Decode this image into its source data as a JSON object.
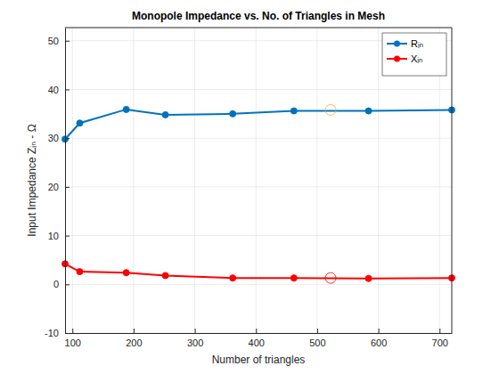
{
  "chart_data": {
    "type": "line",
    "title": "Monopole Impedance vs. No. of Triangles in Mesh",
    "x_label": "Number of triangles",
    "y_label": "Input  Impedance  Zᵢₙ  -  Ω",
    "x": [
      88,
      112,
      188,
      252,
      362,
      462,
      584,
      720
    ],
    "series": [
      {
        "name": "Rᵢₙ",
        "color": "#0072bd",
        "marker": "circle",
        "line_style": "solid",
        "values": [
          29.8,
          33.1,
          35.9,
          34.8,
          35.0,
          35.6,
          35.6,
          35.8
        ]
      },
      {
        "name": "Xᵢₙ",
        "color": "#ff0000",
        "marker": "circle",
        "line_style": "solid",
        "values": [
          4.2,
          2.6,
          2.4,
          1.8,
          1.3,
          1.3,
          1.2,
          1.3
        ]
      },
      {
        "type": "scatter",
        "color": "#edb120",
        "marker": "circle-open",
        "x": [
          522
        ],
        "values": [
          35.8
        ]
      },
      {
        "type": "scatter",
        "color": "#ff0000",
        "marker": "circle-open",
        "x": [
          522
        ],
        "values": [
          1.3
        ]
      }
    ],
    "xlim": [
      88,
      720
    ],
    "ylim": [
      -10,
      52.7
    ],
    "xticks": [
      100,
      200,
      300,
      400,
      500,
      600,
      700
    ],
    "yticks": [
      -10,
      0,
      10,
      20,
      30,
      40,
      50
    ],
    "grid": true,
    "legend": "northeast"
  }
}
